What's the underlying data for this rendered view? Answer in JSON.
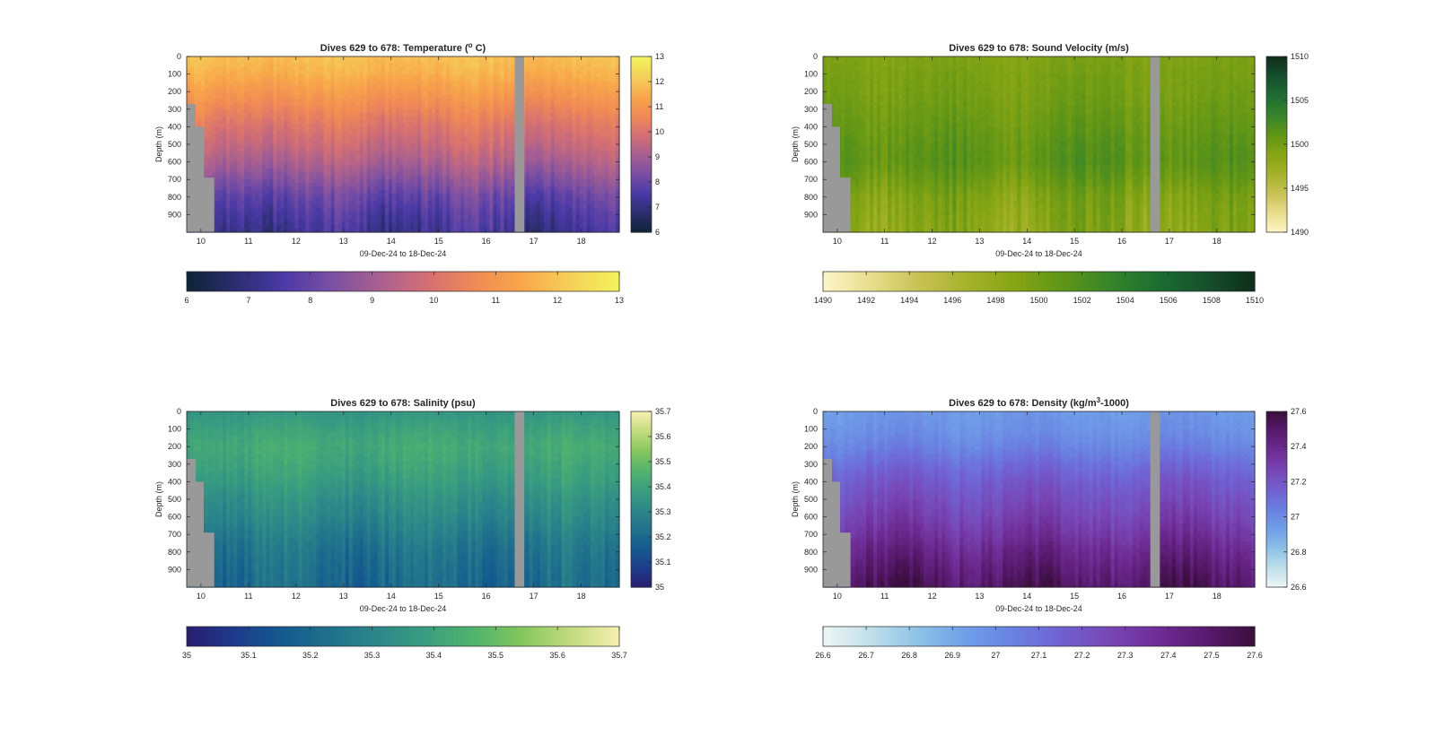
{
  "chart_data": [
    {
      "type": "heatmap",
      "id": "temperature",
      "title": "Dives 629 to 678: Temperature (",
      "title_sup": "o",
      "title_end": " C)",
      "xlabel": "09-Dec-24 to 18-Dec-24",
      "ylabel": "Depth (m)",
      "xlim": [
        9.7,
        18.8
      ],
      "ylim": [
        1000,
        0
      ],
      "xticks": [
        "10",
        "11",
        "12",
        "13",
        "14",
        "15",
        "16",
        "17",
        "18"
      ],
      "yticks": [
        "0",
        "100",
        "200",
        "300",
        "400",
        "500",
        "600",
        "700",
        "800",
        "900"
      ],
      "clim": [
        6,
        13
      ],
      "colorbar_ticks": [
        "6",
        "7",
        "8",
        "9",
        "10",
        "11",
        "12",
        "13"
      ],
      "colormap": [
        "#0d2435",
        "#2b2d6e",
        "#4a3aa6",
        "#7a4fa3",
        "#a8608f",
        "#d36f74",
        "#f08a55",
        "#f8a84a",
        "#f5d15a",
        "#f2f45c"
      ],
      "profile": {
        "depths": [
          0,
          100,
          200,
          300,
          400,
          500,
          600,
          700,
          800,
          900,
          1000
        ],
        "values": [
          11.9,
          11.6,
          11.1,
          10.6,
          10.1,
          9.7,
          9.2,
          8.6,
          8.0,
          7.6,
          7.3
        ]
      },
      "gap_day": 16.7,
      "shallow_dives": [
        [
          9.7,
          9.88,
          270
        ],
        [
          9.88,
          10.05,
          400
        ],
        [
          10.05,
          10.27,
          690
        ]
      ]
    },
    {
      "type": "heatmap",
      "id": "sound-velocity",
      "title": "Dives 629 to 678: Sound Velocity (m/s)",
      "xlabel": "09-Dec-24 to 18-Dec-24",
      "ylabel": "Depth (m)",
      "xlim": [
        9.7,
        18.8
      ],
      "ylim": [
        1000,
        0
      ],
      "xticks": [
        "10",
        "11",
        "12",
        "13",
        "14",
        "15",
        "16",
        "17",
        "18"
      ],
      "yticks": [
        "0",
        "100",
        "200",
        "300",
        "400",
        "500",
        "600",
        "700",
        "800",
        "900"
      ],
      "clim": [
        1490,
        1510
      ],
      "side_colorbar_ticks": [
        "1490",
        "1495",
        "1500",
        "1505",
        "1510"
      ],
      "colorbar_ticks": [
        "1490",
        "1492",
        "1494",
        "1496",
        "1498",
        "1500",
        "1502",
        "1504",
        "1506",
        "1508",
        "1510"
      ],
      "colormap": [
        "#fdf6c8",
        "#e9dd8c",
        "#c8c255",
        "#a5b22a",
        "#86a514",
        "#5f9516",
        "#36842a",
        "#1d6d32",
        "#15502c",
        "#102d1c"
      ],
      "profile": {
        "depths": [
          0,
          100,
          200,
          300,
          400,
          500,
          600,
          700,
          800,
          900,
          1000
        ],
        "values": [
          1499.3,
          1499.6,
          1499.8,
          1500.2,
          1500.6,
          1501.1,
          1501.3,
          1500.4,
          1499.3,
          1498.9,
          1498.6
        ]
      },
      "gap_day": 16.7,
      "shallow_dives": [
        [
          9.7,
          9.88,
          270
        ],
        [
          9.88,
          10.05,
          400
        ],
        [
          10.05,
          10.27,
          690
        ]
      ]
    },
    {
      "type": "heatmap",
      "id": "salinity",
      "title": "Dives 629 to 678: Salinity (psu)",
      "xlabel": "09-Dec-24 to 18-Dec-24",
      "ylabel": "Depth (m)",
      "xlim": [
        9.7,
        18.8
      ],
      "ylim": [
        1000,
        0
      ],
      "xticks": [
        "10",
        "11",
        "12",
        "13",
        "14",
        "15",
        "16",
        "17",
        "18"
      ],
      "yticks": [
        "0",
        "100",
        "200",
        "300",
        "400",
        "500",
        "600",
        "700",
        "800",
        "900"
      ],
      "clim": [
        35,
        35.7
      ],
      "colorbar_ticks": [
        "35",
        "35.1",
        "35.2",
        "35.3",
        "35.4",
        "35.5",
        "35.6",
        "35.7"
      ],
      "colormap": [
        "#2a1d6e",
        "#1e3b8c",
        "#145a8f",
        "#21728c",
        "#2d8889",
        "#3a9e7f",
        "#52b46c",
        "#86c75d",
        "#c2db7e",
        "#f7f0b0"
      ],
      "profile": {
        "depths": [
          0,
          100,
          200,
          300,
          400,
          500,
          600,
          700,
          800,
          900,
          1000
        ],
        "values": [
          35.36,
          35.4,
          35.43,
          35.41,
          35.38,
          35.34,
          35.31,
          35.27,
          35.24,
          35.22,
          35.21
        ]
      },
      "gap_day": 16.7,
      "shallow_dives": [
        [
          9.7,
          9.88,
          270
        ],
        [
          9.88,
          10.05,
          400
        ],
        [
          10.05,
          10.27,
          690
        ]
      ]
    },
    {
      "type": "heatmap",
      "id": "density",
      "title": "Dives 629 to 678: Density (kg/m",
      "title_sup": "3",
      "title_end": "-1000)",
      "xlabel": "09-Dec-24 to 18-Dec-24",
      "ylabel": "Depth (m)",
      "xlim": [
        9.7,
        18.8
      ],
      "ylim": [
        1000,
        0
      ],
      "xticks": [
        "10",
        "11",
        "12",
        "13",
        "14",
        "15",
        "16",
        "17",
        "18"
      ],
      "yticks": [
        "0",
        "100",
        "200",
        "300",
        "400",
        "500",
        "600",
        "700",
        "800",
        "900"
      ],
      "clim": [
        26.6,
        27.6
      ],
      "side_colorbar_ticks": [
        "26.6",
        "26.8",
        "27",
        "27.2",
        "27.4",
        "27.6"
      ],
      "colorbar_ticks": [
        "26.6",
        "26.7",
        "26.8",
        "26.9",
        "27",
        "27.1",
        "27.2",
        "27.3",
        "27.4",
        "27.5",
        "27.6"
      ],
      "colormap": [
        "#eef6f6",
        "#bfe0ea",
        "#8dc1e7",
        "#6f9ee8",
        "#6a80e0",
        "#7160d0",
        "#7846b5",
        "#6e2c94",
        "#581a6e",
        "#3a0e3d"
      ],
      "profile": {
        "depths": [
          0,
          100,
          200,
          300,
          400,
          500,
          600,
          700,
          800,
          900,
          1000
        ],
        "values": [
          26.95,
          26.98,
          27.03,
          27.11,
          27.18,
          27.23,
          27.28,
          27.34,
          27.41,
          27.47,
          27.52
        ]
      },
      "gap_day": 16.7,
      "shallow_dives": [
        [
          9.7,
          9.88,
          270
        ],
        [
          9.88,
          10.05,
          400
        ],
        [
          10.05,
          10.27,
          690
        ]
      ]
    }
  ]
}
